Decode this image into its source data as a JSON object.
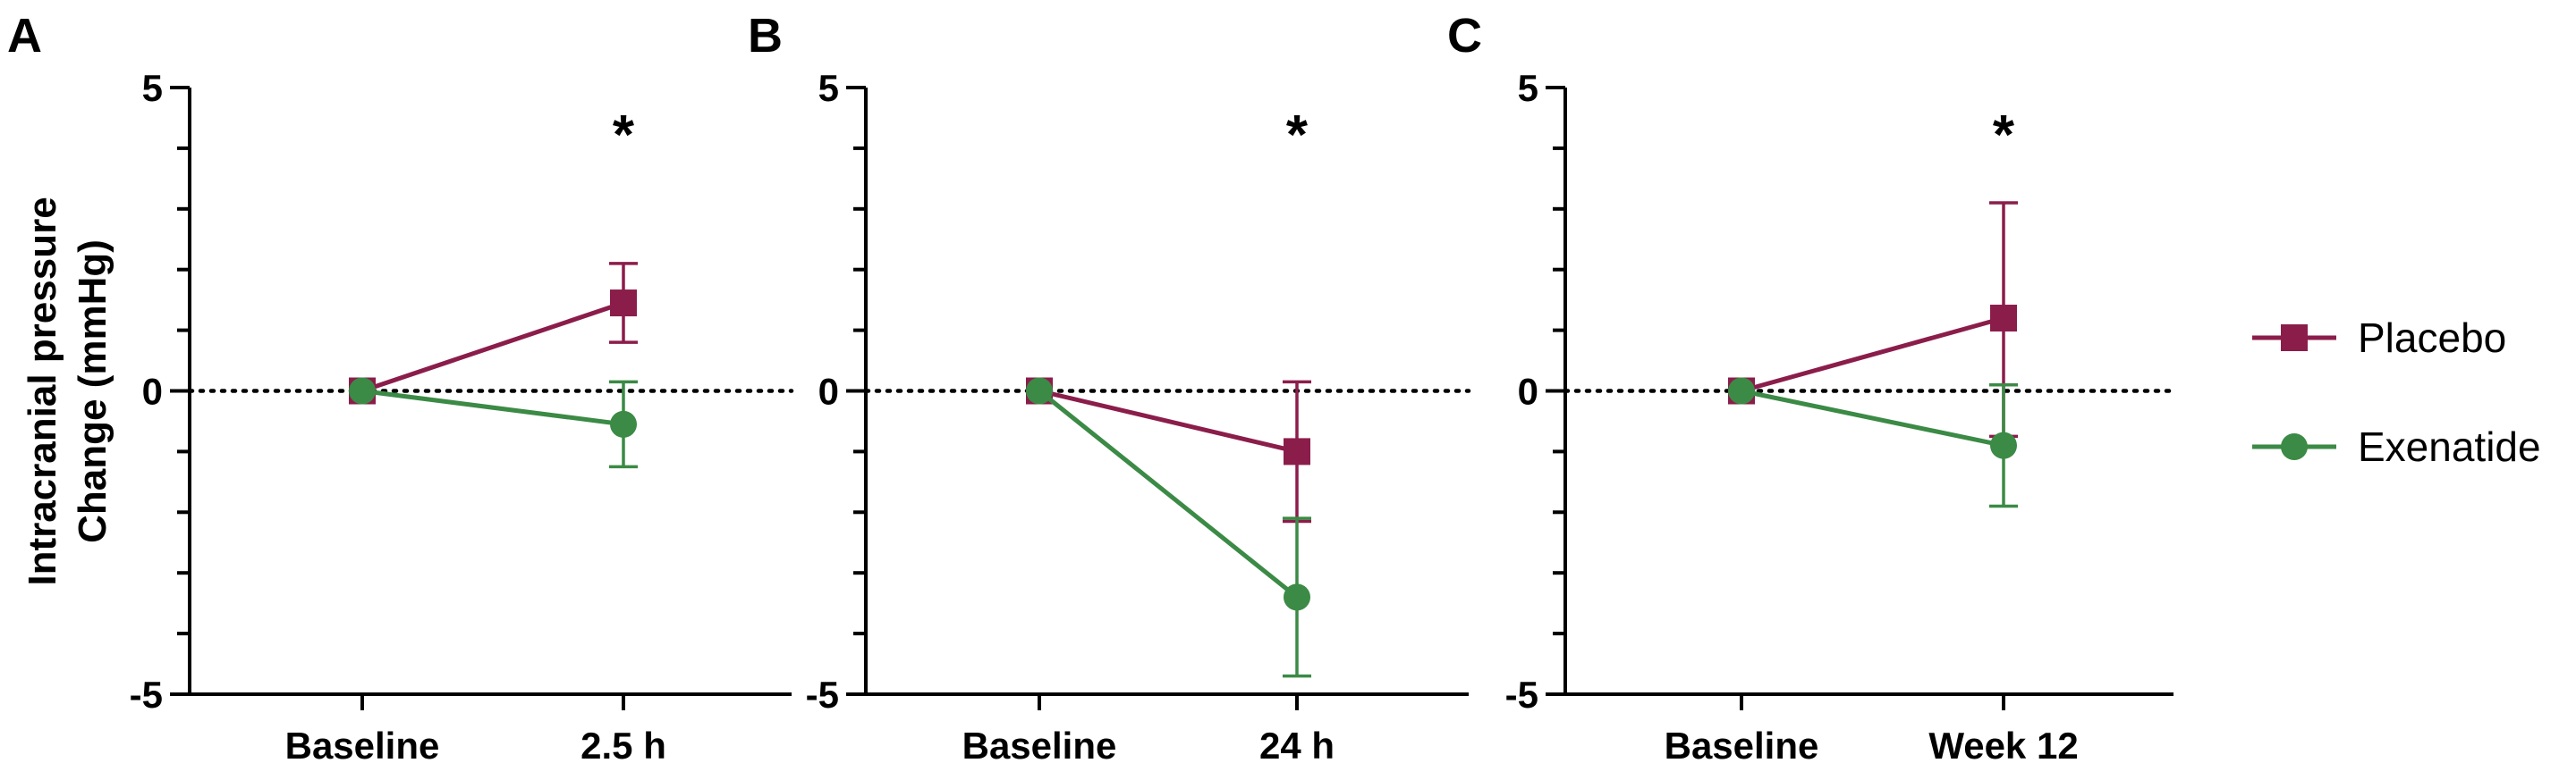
{
  "figure": {
    "ylabel_line1": "Intracranial pressure",
    "ylabel_line2": "Change (mmHg)"
  },
  "legend": {
    "items": [
      {
        "name": "Placebo",
        "color": "#8B1D4B",
        "marker": "square"
      },
      {
        "name": "Exenatide",
        "color": "#3B8A45",
        "marker": "circle"
      }
    ]
  },
  "chart_data": [
    {
      "type": "line",
      "panel": "A",
      "categories": [
        "Baseline",
        "2.5 h"
      ],
      "ylim": [
        -5,
        5
      ],
      "yticks": [
        "5",
        "0",
        "-5"
      ],
      "reference_line": 0,
      "significance": "*",
      "series": [
        {
          "name": "Placebo",
          "color": "#8B1D4B",
          "values": [
            0,
            1.45
          ],
          "err_low": [
            0,
            0.8
          ],
          "err_high": [
            0,
            2.1
          ]
        },
        {
          "name": "Exenatide",
          "color": "#3B8A45",
          "values": [
            0,
            -0.55
          ],
          "err_low": [
            0,
            -1.25
          ],
          "err_high": [
            0,
            0.15
          ]
        }
      ]
    },
    {
      "type": "line",
      "panel": "B",
      "categories": [
        "Baseline",
        "24 h"
      ],
      "ylim": [
        -5,
        5
      ],
      "yticks": [
        "5",
        "0",
        "-5"
      ],
      "reference_line": 0,
      "significance": "*",
      "series": [
        {
          "name": "Placebo",
          "color": "#8B1D4B",
          "values": [
            0,
            -1.0
          ],
          "err_low": [
            0,
            -2.15
          ],
          "err_high": [
            0,
            0.15
          ]
        },
        {
          "name": "Exenatide",
          "color": "#3B8A45",
          "values": [
            0,
            -3.4
          ],
          "err_low": [
            0,
            -4.7
          ],
          "err_high": [
            0,
            -2.1
          ]
        }
      ]
    },
    {
      "type": "line",
      "panel": "C",
      "categories": [
        "Baseline",
        "Week 12"
      ],
      "ylim": [
        -5,
        5
      ],
      "yticks": [
        "5",
        "0",
        "-5"
      ],
      "reference_line": 0,
      "significance": "*",
      "series": [
        {
          "name": "Placebo",
          "color": "#8B1D4B",
          "values": [
            0,
            1.2
          ],
          "err_low": [
            0,
            -0.75
          ],
          "err_high": [
            0,
            3.1
          ]
        },
        {
          "name": "Exenatide",
          "color": "#3B8A45",
          "values": [
            0,
            -0.9
          ],
          "err_low": [
            0,
            -1.9
          ],
          "err_high": [
            0,
            0.1
          ]
        }
      ]
    }
  ]
}
